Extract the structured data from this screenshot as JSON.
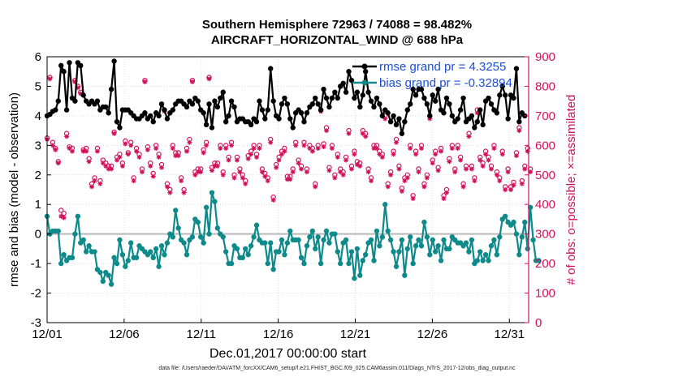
{
  "chart_data": {
    "type": "line",
    "title": "Southern Hemisphere 72963 / 74088 = 98.482%",
    "subtitle": "AIRCRAFT_HORIZONTAL_WIND @ 688 hPa",
    "xlabel": "Dec.01,2017 00:00:00 start",
    "ylabel_left": "rmse and bias (model - observation)",
    "ylabel_right": "# of obs: o=possible; ×=assimilated",
    "x_range_days": [
      0,
      31.25
    ],
    "x_ticks": [
      {
        "day": 0,
        "label": "12/01"
      },
      {
        "day": 5,
        "label": "12/06"
      },
      {
        "day": 10,
        "label": "12/11"
      },
      {
        "day": 15,
        "label": "12/16"
      },
      {
        "day": 20,
        "label": "12/21"
      },
      {
        "day": 25,
        "label": "12/26"
      },
      {
        "day": 30,
        "label": "12/31"
      }
    ],
    "ylim_left": [
      -3,
      6
    ],
    "yticks_left": [
      "-3",
      "-2",
      "-1",
      "0",
      "1",
      "2",
      "3",
      "4",
      "5",
      "6"
    ],
    "ylim_right": [
      0,
      900
    ],
    "yticks_right": [
      "0",
      "100",
      "200",
      "300",
      "400",
      "500",
      "600",
      "700",
      "800",
      "900"
    ],
    "grid": true,
    "legend_position": "top-right",
    "colors": {
      "rmse": "#000000",
      "bias": "#0f8a8a",
      "obs": "#d0105a",
      "zero": "#b8b8b8"
    },
    "series": [
      {
        "name": "rmse grand pr = 4.3255",
        "key": "rmse",
        "values": [
          4.0,
          4.05,
          4.15,
          4.2,
          4.5,
          5.7,
          5.5,
          4.2,
          5.8,
          4.6,
          4.5,
          5.8,
          5.7,
          4.7,
          4.5,
          4.4,
          4.5,
          4.4,
          4.5,
          4.2,
          4.3,
          4.3,
          4.1,
          4.9,
          5.85,
          3.8,
          3.6,
          4.2,
          4.2,
          4.2,
          4.1,
          4.0,
          3.9,
          3.9,
          4.0,
          4.1,
          3.9,
          4.0,
          3.8,
          4.1,
          4.0,
          4.4,
          4.2,
          3.9,
          4.1,
          4.2,
          4.4,
          4.5,
          4.5,
          4.4,
          4.3,
          4.5,
          4.4,
          4.6,
          4.5,
          4.2,
          4.1,
          3.7,
          4.4,
          3.6,
          4.5,
          4.3,
          4.6,
          4.8,
          3.8,
          4.0,
          4.5,
          4.3,
          3.8,
          3.9,
          3.9,
          3.8,
          3.8,
          3.7,
          3.9,
          3.8,
          4.5,
          4.2,
          3.9,
          4.2,
          5.6,
          4.5,
          4.0,
          3.9,
          4.4,
          4.6,
          4.4,
          3.9,
          3.6,
          4.1,
          4.2,
          4.1,
          3.8,
          4.1,
          4.3,
          4.4,
          4.6,
          4.4,
          4.2,
          4.9,
          4.6,
          4.3,
          4.6,
          4.8,
          4.6,
          5.0,
          5.1,
          4.8,
          5.5,
          5.2,
          4.6,
          4.8,
          4.3,
          4.7,
          5.5,
          4.8,
          4.5,
          4.3,
          4.6,
          4.4,
          4.0,
          4.2,
          4.1,
          3.8,
          4.0,
          3.7,
          3.9,
          3.4,
          3.8,
          4.2,
          4.4,
          4.9,
          4.7,
          4.9,
          4.9,
          4.6,
          4.4,
          4.0,
          4.7,
          4.5,
          4.9,
          4.2,
          4.1,
          4.6,
          4.4,
          4.0,
          3.8,
          3.9,
          4.2,
          4.6,
          3.8,
          3.9,
          4.0,
          3.6,
          3.8,
          4.2,
          3.7,
          4.5,
          4.6,
          4.4,
          4.2,
          4.1,
          4.7,
          5.0,
          4.7,
          3.9,
          4.7,
          4.6,
          5.6,
          3.8,
          4.1,
          4.0
        ]
      },
      {
        "name": "bias grand pr = -0.32894",
        "key": "bias",
        "values": [
          0.6,
          0.0,
          0.1,
          0.1,
          0.1,
          -1.0,
          -0.7,
          -0.9,
          -0.8,
          -0.8,
          0.0,
          0.6,
          -0.3,
          -0.2,
          -0.6,
          -0.4,
          -0.6,
          -0.6,
          -1.2,
          -1.3,
          -1.6,
          -1.3,
          -1.4,
          -1.7,
          -0.8,
          -1.0,
          -0.2,
          -0.7,
          -1.1,
          -0.9,
          -0.3,
          -0.8,
          -0.8,
          -0.4,
          -0.5,
          -0.6,
          -0.7,
          -0.6,
          -0.8,
          -0.5,
          -1.1,
          -0.4,
          -0.7,
          -0.3,
          0.0,
          -0.1,
          0.8,
          0.2,
          -0.2,
          -0.3,
          -0.7,
          -0.2,
          -0.1,
          0.5,
          0.4,
          -0.1,
          -0.3,
          0.9,
          0.0,
          1.4,
          1.1,
          0.2,
          0.0,
          -0.1,
          -0.6,
          -1.0,
          -1.0,
          -0.4,
          -0.5,
          -0.8,
          -0.8,
          -0.5,
          -0.7,
          -0.4,
          -0.1,
          0.3,
          -0.2,
          -0.3,
          -0.3,
          -1.0,
          -0.3,
          -1.2,
          -0.6,
          -0.6,
          -0.2,
          -0.7,
          -0.3,
          0.1,
          -0.2,
          -0.2,
          -0.2,
          -0.8,
          -1.0,
          -0.4,
          -0.1,
          0.1,
          -0.5,
          -0.1,
          -1.0,
          -0.2,
          0.1,
          -0.3,
          0.0,
          0.0,
          -0.6,
          -1.0,
          -0.3,
          -0.2,
          -1.0,
          -0.6,
          -1.5,
          -0.5,
          -1.4,
          -0.9,
          -0.7,
          -0.3,
          -0.2,
          -0.9,
          0.1,
          -0.4,
          -0.1,
          1.0,
          0.1,
          -0.2,
          -0.6,
          -1.1,
          -0.6,
          -0.2,
          -1.4,
          -0.5,
          -0.1,
          -1.0,
          -0.4,
          -0.2,
          -0.4,
          0.4,
          -0.1,
          -0.7,
          -0.2,
          -0.6,
          -0.4,
          -0.9,
          -0.2,
          -0.5,
          -0.5,
          -0.1,
          -0.2,
          -0.3,
          -0.3,
          -0.4,
          -0.3,
          -0.6,
          -0.2,
          -1.0,
          -0.9,
          -0.6,
          -0.9,
          -0.7,
          -0.9,
          -0.4,
          -0.2,
          -0.7,
          -0.1,
          0.5,
          0.6,
          0.4,
          0.3,
          0.4,
          0.0,
          -0.7,
          -0.1,
          0.4,
          -0.5,
          0.9,
          -0.2,
          -0.9,
          -0.9
        ]
      },
      {
        "name": "possible",
        "key": "possible",
        "values": [
          625,
          830,
          610,
          590,
          545,
          380,
          370,
          640,
          595,
          590,
          820,
          800,
          780,
          585,
          590,
          555,
          470,
          490,
          590,
          480,
          550,
          540,
          530,
          530,
          645,
          560,
          570,
          540,
          615,
          575,
          610,
          490,
          590,
          570,
          520,
          820,
          595,
          540,
          505,
          600,
          570,
          535,
          720,
          470,
          450,
          600,
          575,
          575,
          490,
          450,
          590,
          620,
          820,
          510,
          520,
          520,
          585,
          610,
          830,
          525,
          540,
          540,
          600,
          510,
          600,
          560,
          610,
          500,
          560,
          520,
          500,
          480,
          565,
          580,
          600,
          570,
          600,
          520,
          505,
          490,
          620,
          425,
          535,
          560,
          580,
          590,
          495,
          495,
          520,
          610,
          550,
          530,
          610,
          520,
          600,
          590,
          470,
          600,
          720,
          605,
          660,
          525,
          600,
          500,
          570,
          520,
          510,
          560,
          650,
          530,
          580,
          545,
          540,
          650,
          640,
          520,
          490,
          600,
          600,
          580,
          570,
          700,
          470,
          510,
          580,
          620,
          530,
          455,
          490,
          500,
          600,
          430,
          580,
          520,
          600,
          470,
          500,
          700,
          550,
          580,
          525,
          590,
          430,
          450,
          555,
          600,
          520,
          600,
          560,
          470,
          530,
          640,
          530,
          490,
          720,
          560,
          540,
          580,
          560,
          530,
          600,
          510,
          490,
          580,
          460,
          520,
          460,
          475,
          575,
          660,
          480,
          530,
          590,
          520
        ],
        "marker": "circle"
      },
      {
        "name": "assimilated",
        "key": "assimilated",
        "values": [
          620,
          825,
          600,
          585,
          540,
          360,
          355,
          630,
          590,
          580,
          815,
          795,
          775,
          580,
          580,
          545,
          460,
          480,
          580,
          470,
          540,
          530,
          520,
          520,
          640,
          550,
          560,
          530,
          605,
          570,
          600,
          480,
          580,
          560,
          510,
          815,
          585,
          530,
          495,
          590,
          560,
          525,
          715,
          460,
          440,
          590,
          565,
          565,
          480,
          440,
          580,
          610,
          815,
          500,
          510,
          510,
          575,
          600,
          825,
          515,
          530,
          530,
          590,
          500,
          590,
          550,
          600,
          490,
          550,
          510,
          490,
          470,
          555,
          570,
          590,
          560,
          590,
          510,
          495,
          480,
          610,
          415,
          525,
          550,
          570,
          580,
          485,
          485,
          510,
          600,
          540,
          520,
          600,
          510,
          590,
          580,
          460,
          590,
          715,
          595,
          650,
          515,
          590,
          490,
          560,
          510,
          500,
          550,
          640,
          520,
          570,
          535,
          530,
          640,
          630,
          510,
          480,
          590,
          590,
          570,
          560,
          690,
          460,
          500,
          570,
          610,
          520,
          445,
          480,
          490,
          590,
          420,
          570,
          510,
          590,
          460,
          490,
          690,
          540,
          570,
          515,
          580,
          420,
          440,
          545,
          590,
          510,
          590,
          550,
          460,
          520,
          630,
          520,
          480,
          710,
          550,
          530,
          570,
          550,
          520,
          590,
          500,
          480,
          570,
          450,
          510,
          450,
          465,
          565,
          650,
          470,
          520,
          580,
          510
        ],
        "marker": "asterisk"
      }
    ]
  },
  "footer_text": "data file: /Users/raeder/DAI/ATM_forcXX/CAM6_setup/f.e21.FHIST_BGC.f09_025.CAM6assim.011/Diags_NTrS_2017-12/obs_diag_output.nc"
}
